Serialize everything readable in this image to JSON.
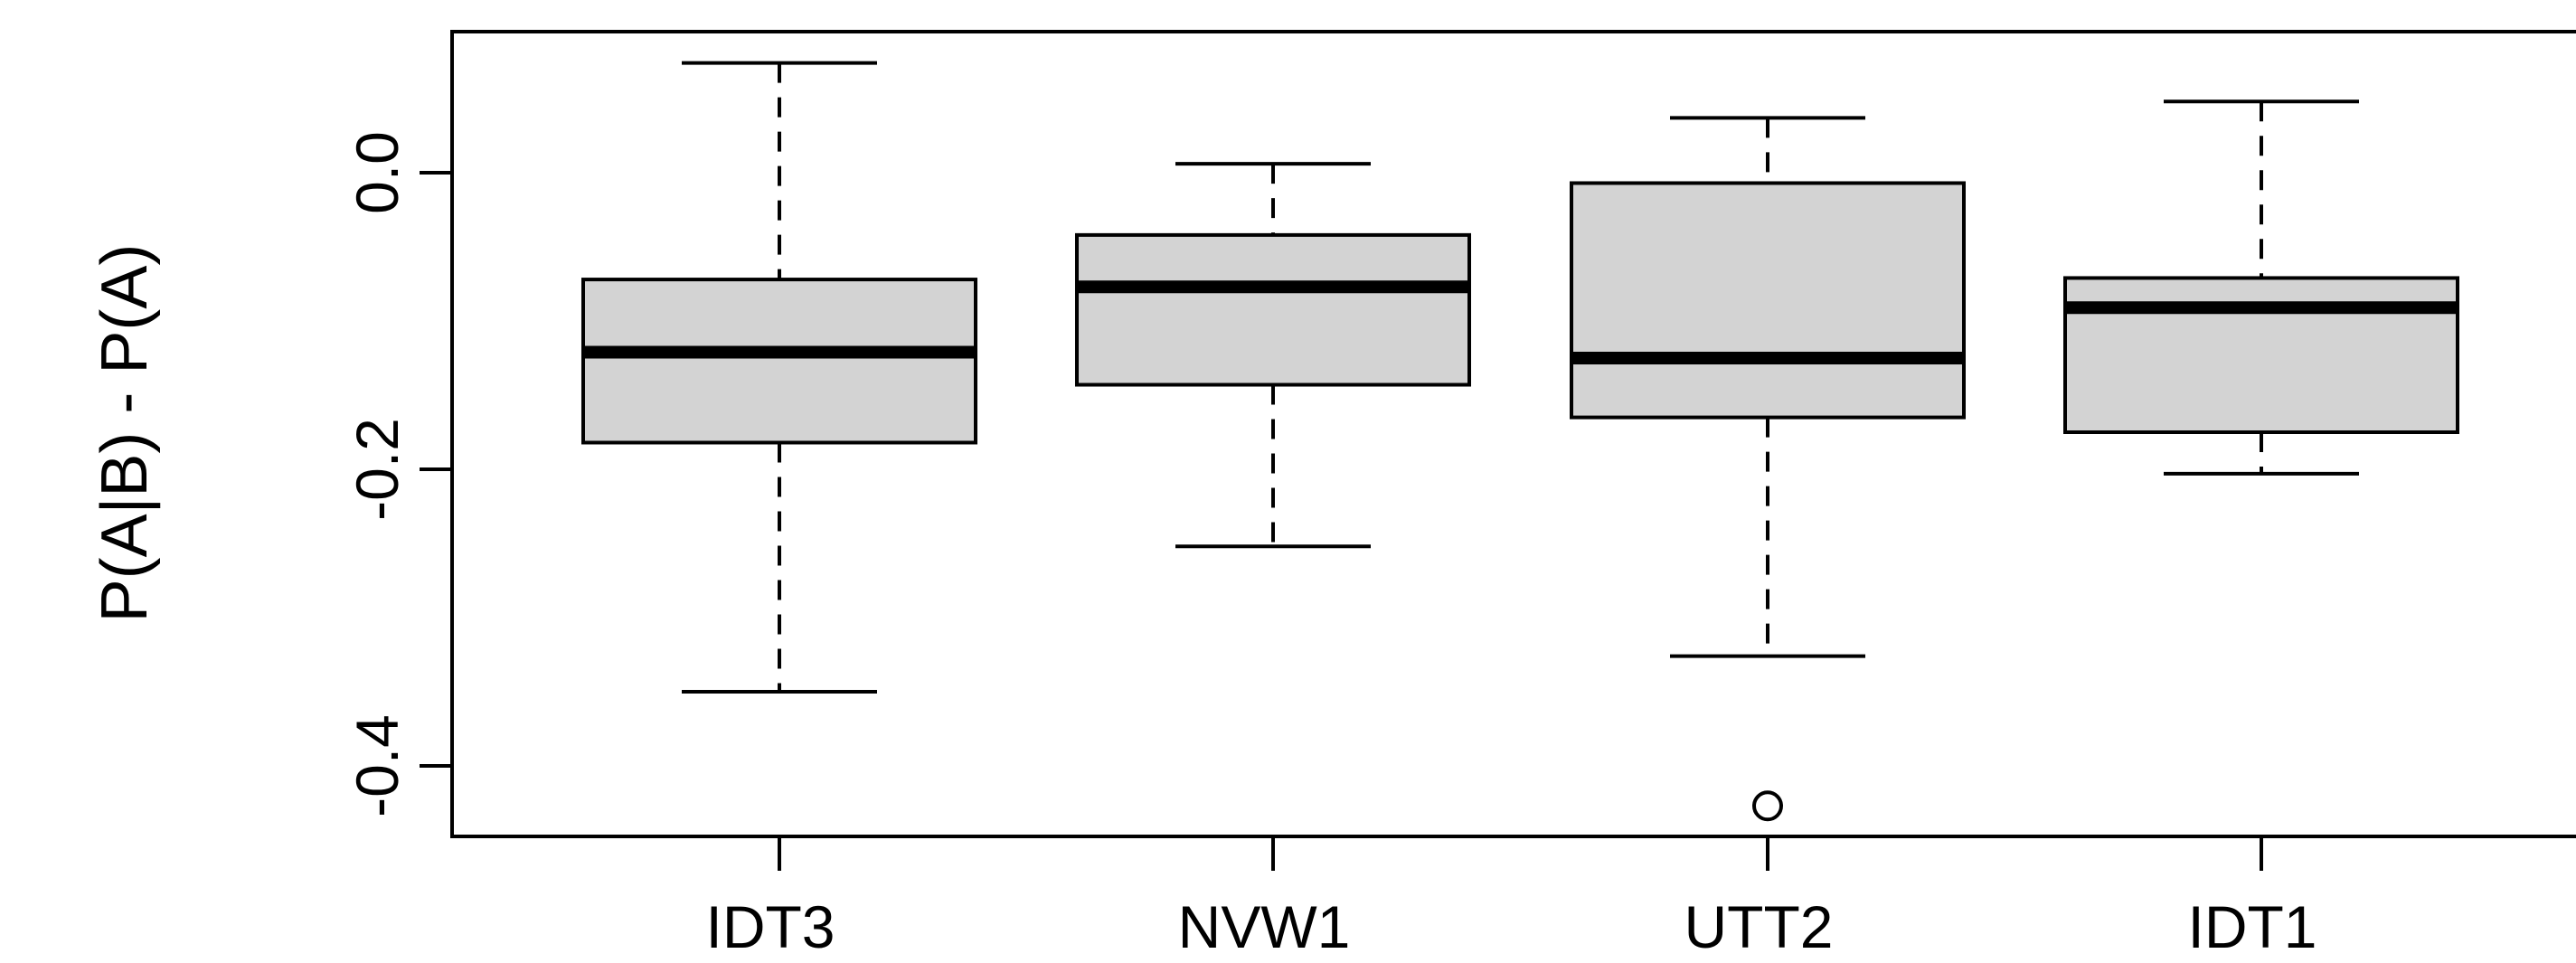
{
  "chart_data": {
    "type": "boxplot",
    "title": "",
    "xlabel": "",
    "ylabel": "P(A|B) - P(A)",
    "ylim": [
      -0.45,
      0.1
    ],
    "yticks": [
      0.0,
      -0.2,
      -0.4
    ],
    "ytick_labels": [
      "0.0",
      "-0.2",
      "-0.4"
    ],
    "grid": false,
    "colors": {
      "box_fill": "#d3d3d3",
      "stroke": "#000000"
    },
    "categories": [
      "IDT3",
      "NVW1",
      "UTT2",
      "IDT1"
    ],
    "boxes": [
      {
        "name": "IDT3",
        "whisker_low": -0.35,
        "q1": -0.182,
        "median": -0.121,
        "q3": -0.072,
        "whisker_high": 0.074,
        "outliers": []
      },
      {
        "name": "NVW1",
        "whisker_low": -0.252,
        "q1": -0.143,
        "median": -0.077,
        "q3": -0.042,
        "whisker_high": 0.006,
        "outliers": []
      },
      {
        "name": "UTT2",
        "whisker_low": -0.326,
        "q1": -0.165,
        "median": -0.125,
        "q3": -0.007,
        "whisker_high": 0.037,
        "outliers": [
          -0.427
        ]
      },
      {
        "name": "IDT1",
        "whisker_low": -0.203,
        "q1": -0.175,
        "median": -0.091,
        "q3": -0.071,
        "whisker_high": 0.048,
        "outliers": []
      }
    ]
  }
}
